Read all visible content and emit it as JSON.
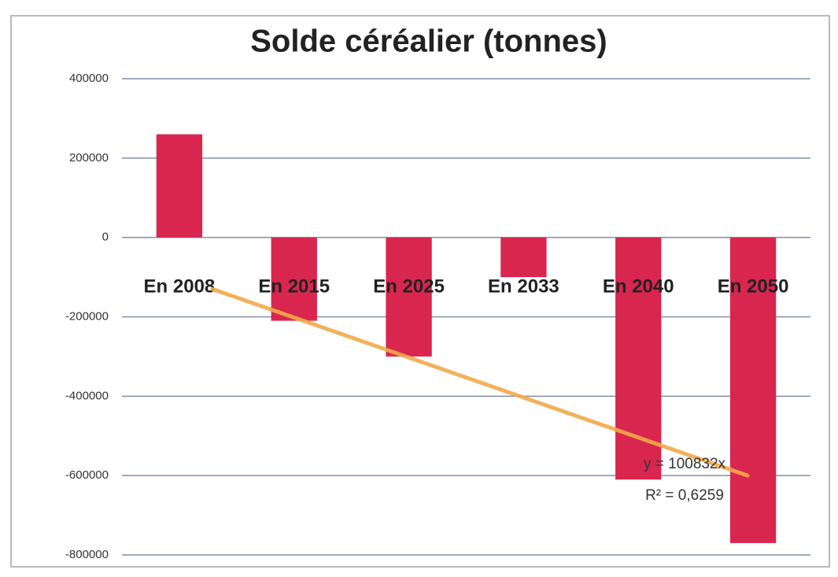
{
  "chart_data": {
    "type": "bar",
    "title": "Solde céréalier (tonnes)",
    "categories": [
      "En 2008",
      "En 2015",
      "En 2025",
      "En 2033",
      "En 2040",
      "En 2050"
    ],
    "values": [
      260000,
      -210000,
      -300000,
      -100000,
      -610000,
      -770000
    ],
    "color": "#d8264f",
    "ylim": [
      -800000,
      400000
    ],
    "yticks": [
      -800000,
      -600000,
      -400000,
      -200000,
      0,
      200000,
      400000
    ],
    "grid": true,
    "trendline": {
      "color": "#f2a94a",
      "start": -130000,
      "end": -600000,
      "equation": "y = 100832x",
      "r_squared": "R² = 0,6259"
    }
  }
}
